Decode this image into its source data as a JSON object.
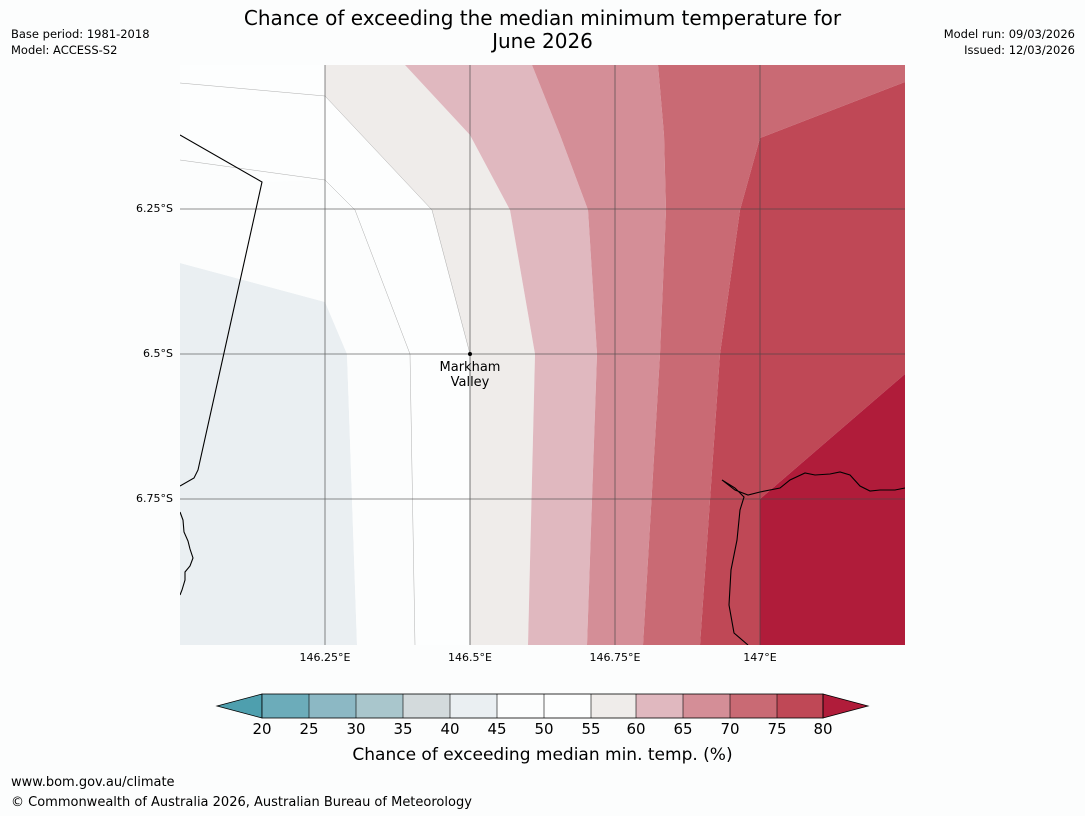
{
  "header": {
    "title_line1": "Chance of exceeding the median minimum temperature for",
    "title_line2": "June 2026",
    "base_period": "Base period: 1981-2018",
    "model": "Model: ACCESS-S2",
    "model_run": "Model run: 09/03/2026",
    "issued": "Issued: 12/03/2026"
  },
  "map": {
    "lat_labels": [
      "6.25°S",
      "6.5°S",
      "6.75°S"
    ],
    "lon_labels": [
      "146.25°E",
      "146.5°E",
      "146.75°E",
      "147°E"
    ],
    "place_line1": "Markham",
    "place_line2": "Valley"
  },
  "legend": {
    "ticks": [
      "20",
      "25",
      "30",
      "35",
      "40",
      "45",
      "50",
      "55",
      "60",
      "65",
      "70",
      "75",
      "80"
    ],
    "label": "Chance of exceeding median min. temp. (%)",
    "colors": {
      "below_20": "#4e9fae",
      "20_25": "#6cacba",
      "25_30": "#8cb8c4",
      "30_35": "#a9c6cc",
      "35_40": "#d3dadc",
      "40_45": "#eaeff2",
      "45_50": "#fcfdfd",
      "50_55": "#fdfefe",
      "55_60": "#efecea",
      "60_65": "#e0b8bf",
      "65_70": "#d48e97",
      "70_75": "#c96a74",
      "75_80": "#bf4856",
      "above_80": "#b01c3a"
    }
  },
  "footer": {
    "url": "www.bom.gov.au/climate",
    "copyright": "© Commonwealth of Australia 2026, Australian Bureau of Meteorology"
  }
}
